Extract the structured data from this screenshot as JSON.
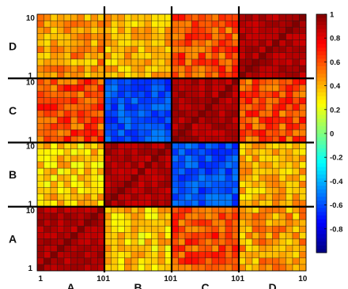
{
  "chart_data": {
    "type": "heatmap",
    "title": "",
    "xlabel": "",
    "ylabel": "",
    "blocks": [
      "A",
      "B",
      "C",
      "D"
    ],
    "cells_per_block": 10,
    "block_tick_labels": [
      "1",
      "10"
    ],
    "block_mean_values": [
      [
        0.9,
        0.35,
        0.6,
        0.45
      ],
      [
        0.35,
        0.9,
        -0.6,
        0.4
      ],
      [
        0.6,
        -0.6,
        0.9,
        0.6
      ],
      [
        0.45,
        0.4,
        0.6,
        0.9
      ]
    ],
    "block_variation": [
      [
        0.06,
        0.15,
        0.15,
        0.15
      ],
      [
        0.15,
        0.06,
        0.1,
        0.12
      ],
      [
        0.15,
        0.1,
        0.06,
        0.15
      ],
      [
        0.15,
        0.12,
        0.15,
        0.06
      ]
    ],
    "colorbar": {
      "range": [
        -1,
        1
      ],
      "ticks": [
        1,
        0.8,
        0.6,
        0.4,
        0.2,
        0,
        -0.2,
        -0.4,
        -0.6,
        -0.8
      ],
      "tick_labels": [
        "1",
        "0.8",
        "0.6",
        "0.4",
        "0.2",
        "0",
        "-0.2",
        "-0.4",
        "-0.6",
        "-0.8"
      ],
      "colormap": "jet",
      "placement": "right"
    },
    "grid": true
  }
}
